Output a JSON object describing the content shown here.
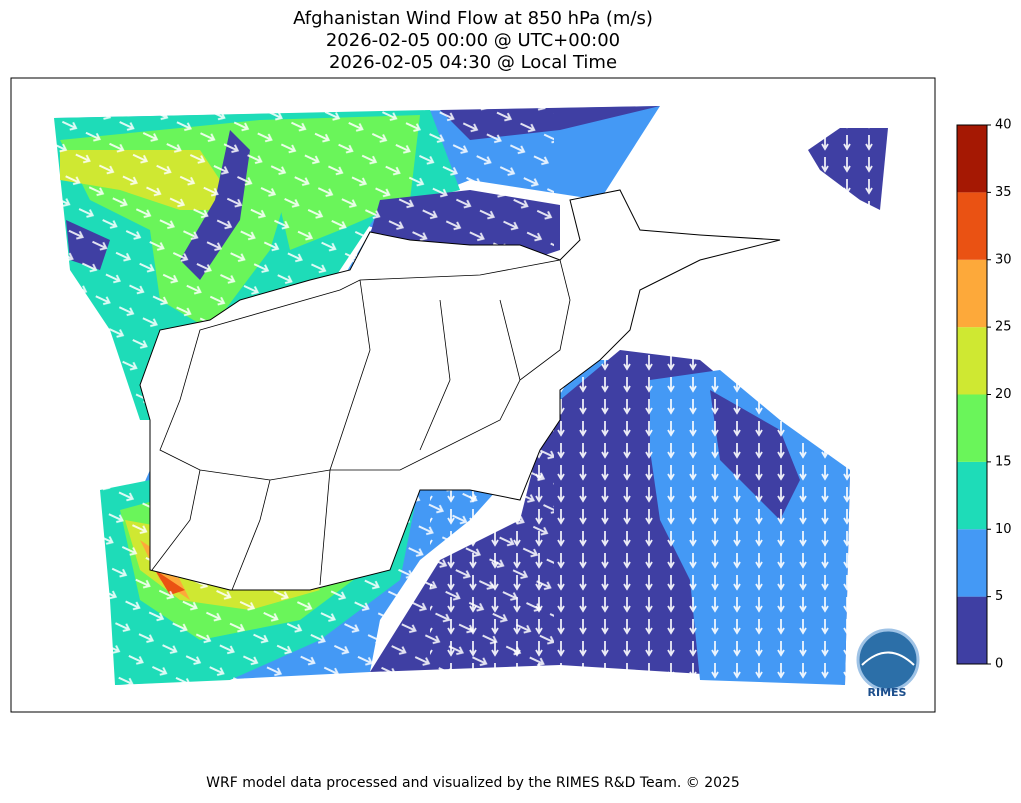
{
  "map": {
    "title": [
      "Afghanistan Wind Flow at 850 hPa (m/s)",
      "2026-02-05 00:00 @ UTC+00:00",
      "2026-02-05 04:30 @ Local Time"
    ],
    "colorbar": {
      "lim": [
        0,
        40
      ],
      "ticks": [
        0,
        5,
        10,
        15,
        20,
        25,
        30,
        35,
        40
      ],
      "colors": [
        "#3f3fa3",
        "#4499f5",
        "#1edcb8",
        "#6af55a",
        "#cfe832",
        "#fda93a",
        "#ea5213",
        "#a51803"
      ]
    },
    "footer": "WRF model data processed and visualized by the RIMES R&D Team. © 2025",
    "logo": "RIMES"
  }
}
